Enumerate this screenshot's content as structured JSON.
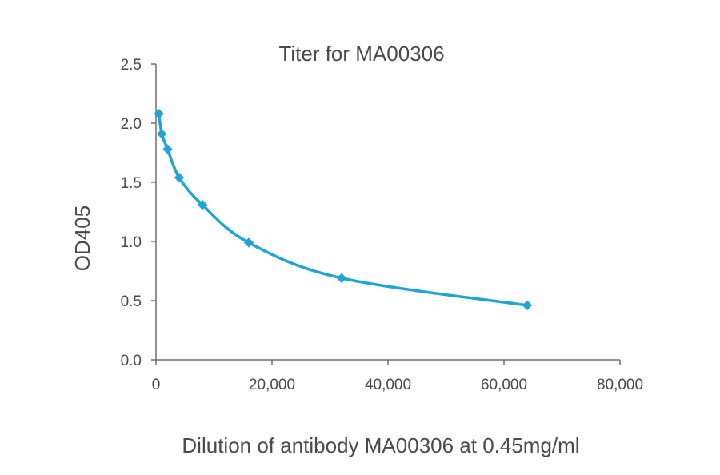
{
  "chart_data": {
    "type": "line",
    "title": "Titer for MA00306",
    "xlabel": "Dilution of antibody MA00306 at 0.45mg/ml",
    "ylabel": "OD405",
    "xlim": [
      0,
      80000
    ],
    "ylim": [
      0,
      2.5
    ],
    "x_ticks": [
      0,
      20000,
      40000,
      60000,
      80000
    ],
    "x_tick_labels": [
      "0",
      "20,000",
      "40,000",
      "60,000",
      "80,000"
    ],
    "y_ticks": [
      0,
      0.5,
      1.0,
      1.5,
      2.0,
      2.5
    ],
    "y_tick_labels": [
      "0.0",
      "0.5",
      "1.0",
      "1.5",
      "2.0",
      "2.5"
    ],
    "grid": false,
    "legend": "none",
    "series": [
      {
        "color": "#1ea5d6",
        "marker": "diamond",
        "x": [
          500,
          1000,
          2000,
          4000,
          8000,
          16000,
          32000,
          64000
        ],
        "y": [
          2.08,
          1.91,
          1.78,
          1.54,
          1.31,
          0.99,
          0.69,
          0.46
        ]
      }
    ]
  },
  "colors": {
    "axis": "#6e6e6e",
    "text": "#4a4a4a"
  }
}
